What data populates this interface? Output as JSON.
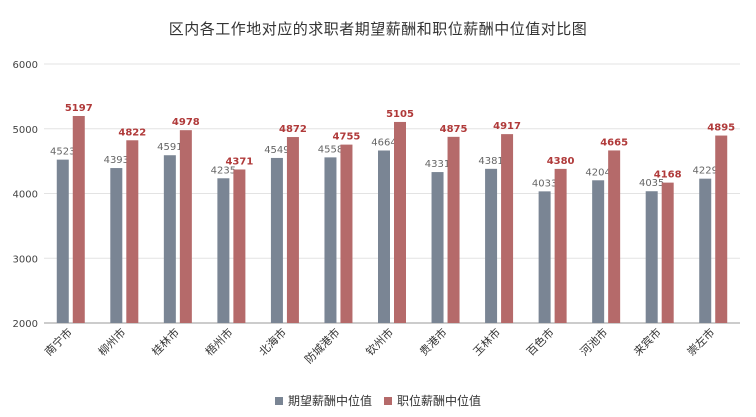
{
  "chart_data": {
    "type": "bar",
    "title": "区内各工作地对应的求职者期望薪酬和职位薪酬中位值对比图",
    "categories": [
      "南宁市",
      "柳州市",
      "桂林市",
      "梧州市",
      "北海市",
      "防城港市",
      "钦州市",
      "贵港市",
      "玉林市",
      "百色市",
      "河池市",
      "来宾市",
      "崇左市"
    ],
    "series": [
      {
        "name": "期望薪酬中位值",
        "color": "#7a8594",
        "label_color": "#666666",
        "values": [
          4523,
          4393,
          4591,
          4235,
          4549,
          4558,
          4664,
          4331,
          4381,
          4033,
          4204,
          4035,
          4229
        ]
      },
      {
        "name": "职位薪酬中位值",
        "color": "#b56a6a",
        "label_color": "#b03a3a",
        "values": [
          5197,
          4822,
          4978,
          4371,
          4872,
          4755,
          5105,
          4875,
          4917,
          4380,
          4665,
          4168,
          4895
        ]
      }
    ],
    "ylim": [
      2000,
      6000
    ],
    "yticks": [
      2000,
      3000,
      4000,
      5000,
      6000
    ],
    "grid": true,
    "legend": "bottom"
  }
}
